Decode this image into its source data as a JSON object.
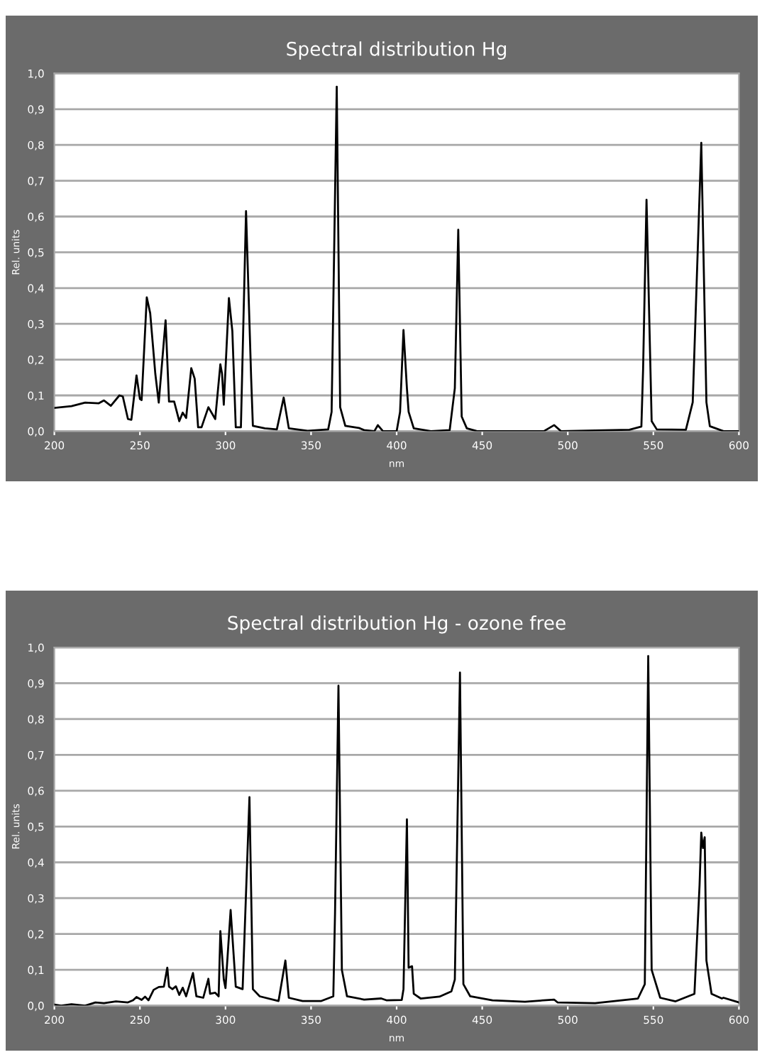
{
  "chart_data": [
    {
      "type": "line",
      "title": "Spectral distribution Hg",
      "xlabel": "nm",
      "ylabel": "Rel. units",
      "series": [
        {
          "color": "#000000",
          "x": [
            200,
            210,
            218,
            226,
            229,
            233,
            238,
            240,
            243,
            245,
            248,
            250,
            251,
            254,
            256,
            259,
            261,
            265,
            267,
            270,
            273,
            275,
            277,
            280,
            282,
            284,
            286,
            290,
            294,
            297,
            298,
            299,
            302,
            304,
            306,
            309,
            312,
            315,
            316,
            323,
            330,
            334,
            337,
            348,
            360,
            362,
            365,
            367,
            370,
            378,
            381,
            387,
            389,
            392,
            400,
            402,
            404,
            406,
            407,
            410,
            420,
            431,
            434,
            436,
            438,
            441,
            447,
            486,
            492,
            496,
            536,
            543,
            544,
            546,
            549,
            552,
            569,
            573,
            578,
            581,
            583,
            591,
            600
          ],
          "values": [
            0.065,
            0.07,
            0.08,
            0.078,
            0.086,
            0.071,
            0.1,
            0.097,
            0.034,
            0.032,
            0.156,
            0.09,
            0.087,
            0.374,
            0.33,
            0.16,
            0.08,
            0.31,
            0.083,
            0.083,
            0.028,
            0.052,
            0.037,
            0.176,
            0.147,
            0.011,
            0.011,
            0.067,
            0.034,
            0.187,
            0.16,
            0.074,
            0.372,
            0.28,
            0.011,
            0.011,
            0.615,
            0.147,
            0.015,
            0.008,
            0.005,
            0.094,
            0.008,
            0.001,
            0.005,
            0.054,
            0.963,
            0.067,
            0.015,
            0.009,
            0.003,
            0.0,
            0.017,
            0.0,
            0.0,
            0.054,
            0.283,
            0.12,
            0.054,
            0.008,
            0.0,
            0.003,
            0.12,
            0.563,
            0.041,
            0.008,
            0.0,
            0.0,
            0.017,
            0.0,
            0.004,
            0.013,
            0.173,
            0.647,
            0.028,
            0.005,
            0.004,
            0.081,
            0.806,
            0.081,
            0.014,
            0.0,
            0.0
          ]
        }
      ],
      "xlim": [
        200,
        600
      ],
      "xticks": [
        200,
        250,
        300,
        350,
        400,
        450,
        500,
        550,
        600
      ],
      "ylim": [
        0,
        1
      ],
      "yticks": [
        {
          "value": 0,
          "label": "0,0"
        },
        {
          "value": 0.1,
          "label": "0,1"
        },
        {
          "value": 0.2,
          "label": "0,2"
        },
        {
          "value": 0.3,
          "label": "0,3"
        },
        {
          "value": 0.4,
          "label": "0,4"
        },
        {
          "value": 0.5,
          "label": "0,5"
        },
        {
          "value": 0.6,
          "label": "0,6"
        },
        {
          "value": 0.7,
          "label": "0,7"
        },
        {
          "value": 0.8,
          "label": "0,8"
        },
        {
          "value": 0.9,
          "label": "0,9"
        },
        {
          "value": 1,
          "label": "1,0"
        }
      ],
      "grid": "y"
    },
    {
      "type": "line",
      "title": "Spectral distribution Hg - ozone free",
      "xlabel": "nm",
      "ylabel": "Rel. units",
      "series": [
        {
          "color": "#000000",
          "x": [
            200,
            204,
            210,
            218,
            224,
            229,
            236,
            243,
            246,
            248,
            251,
            253,
            255,
            258,
            261,
            264,
            266,
            267,
            269,
            271,
            273,
            275,
            277,
            281,
            283,
            287,
            290,
            291,
            294,
            296,
            297,
            299,
            300,
            303,
            306,
            310,
            314,
            316,
            320,
            331,
            335,
            337,
            345,
            356,
            363,
            364,
            366,
            368,
            371,
            381,
            391,
            394,
            403,
            404,
            406,
            407,
            409,
            410,
            414,
            425,
            432,
            434,
            437,
            439,
            443,
            456,
            475,
            492,
            494,
            516,
            541,
            545,
            547,
            549,
            554,
            563,
            574,
            577,
            578,
            579,
            580,
            581,
            584,
            590,
            591,
            600
          ],
          "values": [
            0.003,
            0.0,
            0.004,
            0.0,
            0.009,
            0.007,
            0.012,
            0.009,
            0.015,
            0.024,
            0.016,
            0.025,
            0.015,
            0.044,
            0.052,
            0.053,
            0.106,
            0.053,
            0.046,
            0.054,
            0.03,
            0.05,
            0.026,
            0.091,
            0.026,
            0.022,
            0.075,
            0.033,
            0.036,
            0.026,
            0.208,
            0.073,
            0.049,
            0.267,
            0.053,
            0.046,
            0.582,
            0.046,
            0.026,
            0.013,
            0.126,
            0.022,
            0.013,
            0.013,
            0.026,
            0.258,
            0.893,
            0.1,
            0.026,
            0.017,
            0.02,
            0.015,
            0.016,
            0.046,
            0.52,
            0.106,
            0.11,
            0.033,
            0.02,
            0.025,
            0.04,
            0.073,
            0.93,
            0.06,
            0.026,
            0.015,
            0.011,
            0.017,
            0.009,
            0.007,
            0.02,
            0.06,
            0.976,
            0.1,
            0.022,
            0.012,
            0.033,
            0.337,
            0.483,
            0.44,
            0.47,
            0.126,
            0.033,
            0.02,
            0.022,
            0.009
          ]
        }
      ],
      "xlim": [
        200,
        600
      ],
      "xticks": [
        200,
        250,
        300,
        350,
        400,
        450,
        500,
        550,
        600
      ],
      "ylim": [
        0,
        1
      ],
      "yticks": [
        {
          "value": 0,
          "label": "0,0"
        },
        {
          "value": 0.1,
          "label": "0,1"
        },
        {
          "value": 0.2,
          "label": "0,2"
        },
        {
          "value": 0.3,
          "label": "0,3"
        },
        {
          "value": 0.4,
          "label": "0,4"
        },
        {
          "value": 0.5,
          "label": "0,5"
        },
        {
          "value": 0.6,
          "label": "0,6"
        },
        {
          "value": 0.7,
          "label": "0,7"
        },
        {
          "value": 0.8,
          "label": "0,8"
        },
        {
          "value": 0.9,
          "label": "0,9"
        },
        {
          "value": 1,
          "label": "1,0"
        }
      ],
      "grid": "y"
    }
  ]
}
